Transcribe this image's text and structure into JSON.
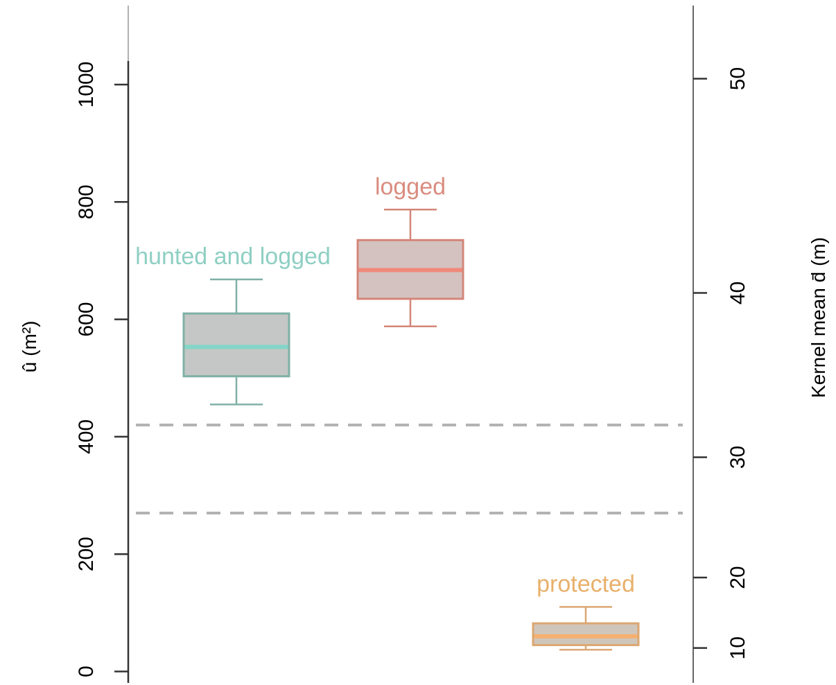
{
  "chart_data": {
    "type": "box",
    "y_left": {
      "label_symbol": "û",
      "label_unit": "(m²)",
      "ticks": [
        0,
        200,
        400,
        600,
        800,
        1000
      ],
      "range": [
        0,
        1130
      ]
    },
    "y_right": {
      "label": "Kernel mean d̄ (m)",
      "ticks": [
        10,
        20,
        30,
        40,
        50
      ],
      "tick_positions_left_units": [
        40,
        160,
        365,
        645,
        1010
      ]
    },
    "reference_lines": [
      {
        "value": 420,
        "style": "dashed",
        "color": "#b3b3b3"
      },
      {
        "value": 270,
        "style": "dashed",
        "color": "#b3b3b3"
      }
    ],
    "series": [
      {
        "name": "hunted and logged",
        "color": "#8ecfc3",
        "edge_color": "#7fb0a6",
        "median_color": "#82d6c8",
        "box_fill": "#c4c7c5",
        "min": 455,
        "q1": 503,
        "median": 553,
        "q3": 610,
        "max": 668
      },
      {
        "name": "logged",
        "color": "#d98c7f",
        "edge_color": "#d48578",
        "median_color": "#f0897a",
        "box_fill": "#d4c2c0",
        "min": 588,
        "q1": 635,
        "median": 684,
        "q3": 735,
        "max": 787
      },
      {
        "name": "protected",
        "color": "#e8b06b",
        "edge_color": "#dba772",
        "median_color": "#f5b070",
        "box_fill": "#cfc6bb",
        "min": 37,
        "q1": 45,
        "median": 60,
        "q3": 82,
        "max": 110
      }
    ]
  }
}
